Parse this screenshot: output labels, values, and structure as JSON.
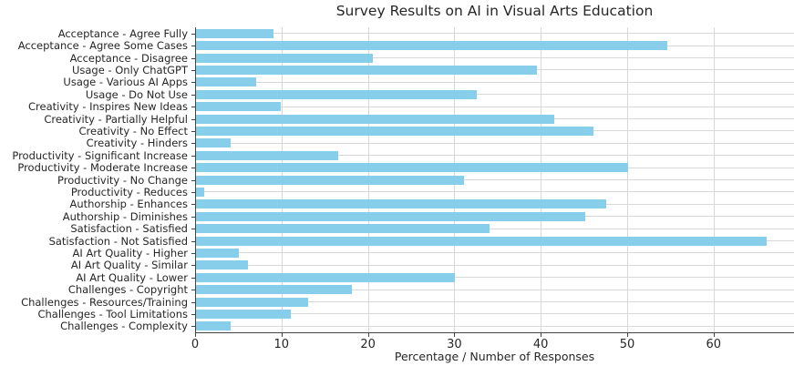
{
  "figure": {
    "title": "Survey Results on AI in Visual Arts Education",
    "xlabel": "Percentage / Number of Responses"
  },
  "chart_data": {
    "type": "bar",
    "orientation": "horizontal",
    "title": "Survey Results on AI in Visual Arts Education",
    "xlabel": "Percentage / Number of Responses",
    "ylabel": "",
    "categories": [
      "Acceptance - Agree Fully",
      "Acceptance - Agree Some Cases",
      "Acceptance - Disagree",
      "Usage - Only ChatGPT",
      "Usage - Various AI Apps",
      "Usage - Do Not Use",
      "Creativity - Inspires New Ideas",
      "Creativity - Partially Helpful",
      "Creativity - No Effect",
      "Creativity - Hinders",
      "Productivity - Significant Increase",
      "Productivity - Moderate Increase",
      "Productivity - No Change",
      "Productivity - Reduces",
      "Authorship - Enhances",
      "Authorship - Diminishes",
      "Satisfaction - Satisfied",
      "Satisfaction - Not Satisfied",
      "AI Art Quality - Higher",
      "AI Art Quality - Similar",
      "AI Art Quality - Lower",
      "Challenges - Copyright",
      "Challenges - Resources/Training",
      "Challenges - Tool Limitations",
      "Challenges - Complexity"
    ],
    "values": [
      9,
      54.5,
      20.5,
      39.5,
      7,
      32.5,
      9.8,
      41.5,
      46,
      4,
      16.5,
      50,
      31,
      1,
      47.5,
      45,
      34,
      66,
      5,
      6,
      30,
      18,
      13,
      11,
      4
    ],
    "xticks": [
      0,
      10,
      20,
      30,
      40,
      50,
      60
    ],
    "xlim": [
      0,
      69.3
    ],
    "grid": true,
    "legend": null,
    "colors": {
      "bar": "#87CEEB",
      "grid": "#d8d8d8",
      "axis": "#444444",
      "text": "#262626",
      "background": "#ffffff"
    }
  }
}
